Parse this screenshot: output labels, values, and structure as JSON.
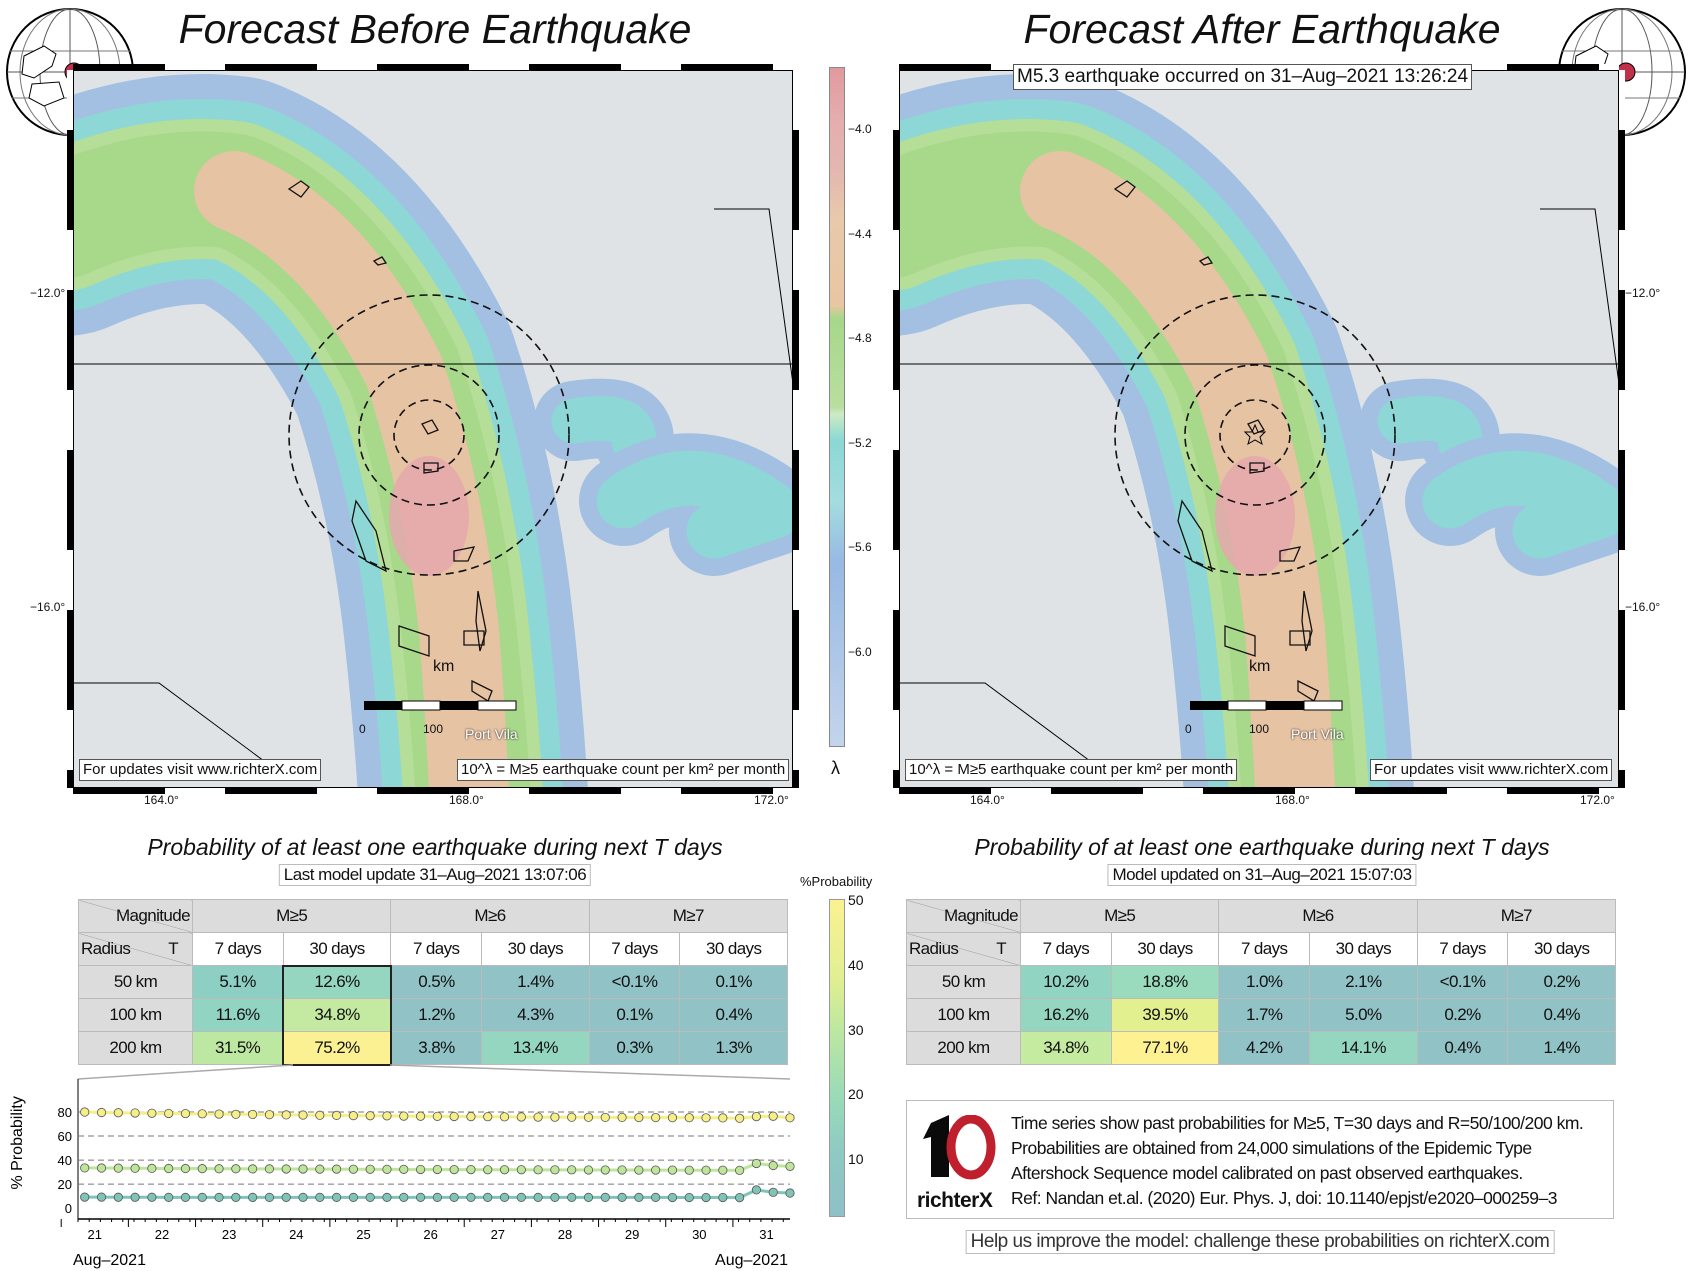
{
  "left_panel": {
    "title": "Forecast Before Earthquake",
    "updates_note": "For updates visit www.richterX.com",
    "legend_note": "10^λ = M≥5 earthquake count per km² per month",
    "table_title": "Probability of at least one earthquake during next T days",
    "table_subtitle": "Last model update 31–Aug–2021 13:07:06",
    "rows": [
      {
        "radius": "50 km",
        "values": [
          "5.1%",
          "12.6%",
          "0.5%",
          "1.4%",
          "<0.1%",
          "0.1%"
        ],
        "colors": [
          "#8ecfc3",
          "#94d6c0",
          "#91c2c6",
          "#91c2c6",
          "#91c2c6",
          "#91c2c6"
        ]
      },
      {
        "radius": "100 km",
        "values": [
          "11.6%",
          "34.8%",
          "1.2%",
          "4.3%",
          "0.1%",
          "0.4%"
        ],
        "colors": [
          "#92d4c2",
          "#c3eaa0",
          "#91c2c6",
          "#91c2c6",
          "#91c2c6",
          "#91c2c6"
        ]
      },
      {
        "radius": "200 km",
        "values": [
          "31.5%",
          "75.2%",
          "3.8%",
          "13.4%",
          "0.3%",
          "1.3%"
        ],
        "colors": [
          "#bde8a2",
          "#fcf192",
          "#91c2c6",
          "#94d6c0",
          "#91c2c6",
          "#91c2c6"
        ]
      }
    ]
  },
  "right_panel": {
    "title": "Forecast After Earthquake",
    "event_note": "M5.3 earthquake occurred on 31–Aug–2021 13:26:24",
    "updates_note": "For updates visit www.richterX.com",
    "legend_note": "10^λ = M≥5 earthquake count per km² per month",
    "table_title": "Probability of at least one earthquake during next T days",
    "table_subtitle": "Model updated on 31–Aug–2021 15:07:03",
    "rows": [
      {
        "radius": "50 km",
        "values": [
          "10.2%",
          "18.8%",
          "1.0%",
          "2.1%",
          "<0.1%",
          "0.2%"
        ],
        "colors": [
          "#92d4c2",
          "#9adbbd",
          "#91c2c6",
          "#91c2c6",
          "#91c2c6",
          "#91c2c6"
        ]
      },
      {
        "radius": "100 km",
        "values": [
          "16.2%",
          "39.5%",
          "1.7%",
          "5.0%",
          "0.2%",
          "0.4%"
        ],
        "colors": [
          "#94d6c0",
          "#e2f08f",
          "#91c2c6",
          "#91c2c6",
          "#91c2c6",
          "#91c2c6"
        ]
      },
      {
        "radius": "200 km",
        "values": [
          "34.8%",
          "77.1%",
          "4.2%",
          "14.1%",
          "0.4%",
          "1.4%"
        ],
        "colors": [
          "#c5eba0",
          "#fdf191",
          "#91c2c6",
          "#94d6c0",
          "#91c2c6",
          "#91c2c6"
        ]
      }
    ],
    "info_lines": [
      "Time series show past probabilities for M≥5, T=30 days and R=50/100/200 km.",
      "Probabilities are obtained from 24,000 simulations of the Epidemic Type",
      "Aftershock Sequence model calibrated on past observed earthquakes.",
      "Ref: Nandan et.al. (2020) Eur. Phys. J, doi: 10.1140/epjst/e2020–000259–3"
    ],
    "logo_text": "richterX",
    "help_note": "Help us improve the model: challenge these probabilities on richterX.com"
  },
  "table_headers": {
    "magnitude": "Magnitude",
    "radius": "Radius",
    "t": "T",
    "mags": [
      "M≥5",
      "M≥6",
      "M≥7"
    ],
    "periods": [
      "7 days",
      "30 days",
      "7 days",
      "30 days",
      "7 days",
      "30 days"
    ]
  },
  "map_axes": {
    "lat_ticks": [
      "−12.0°",
      "−16.0°"
    ],
    "lon_ticks": [
      "164.0°",
      "168.0°",
      "172.0°"
    ],
    "scale_unit": "km",
    "scale_ticks": [
      "0",
      "100"
    ],
    "place": "Port Vila"
  },
  "rate_colorbar": {
    "symbol": "λ",
    "ticks": [
      "−4.0",
      "−4.4",
      "−4.8",
      "−5.2",
      "−5.6",
      "−6.0"
    ]
  },
  "prob_colorbar": {
    "label": "%Probability",
    "ticks": [
      "50",
      "40",
      "30",
      "20",
      "10"
    ]
  },
  "colors": {
    "ring": "#000",
    "epicenter_dot": "#c0304a",
    "logo_red": "#c0202e"
  },
  "chart_data": {
    "type": "line",
    "ylabel": "% Probability",
    "ylim": [
      -9,
      90
    ],
    "xlim": [
      20.75,
      31.35
    ],
    "yticks": [
      0,
      20,
      40,
      60,
      80
    ],
    "xtick_labels": [
      "21",
      "22",
      "23",
      "24",
      "25",
      "26",
      "27",
      "28",
      "29",
      "30",
      "31"
    ],
    "xtick_values": [
      21,
      22,
      23,
      24,
      25,
      26,
      27,
      28,
      29,
      30,
      31
    ],
    "x_month_left": "Aug–2021",
    "x_month_right": "Aug–2021",
    "grid": "horizontal dashed",
    "x": [
      20.85,
      21.1,
      21.35,
      21.6,
      21.85,
      22.1,
      22.35,
      22.6,
      22.85,
      23.1,
      23.35,
      23.6,
      23.85,
      24.1,
      24.35,
      24.6,
      24.85,
      25.1,
      25.35,
      25.6,
      25.85,
      26.1,
      26.35,
      26.6,
      26.85,
      27.1,
      27.35,
      27.6,
      27.85,
      28.1,
      28.35,
      28.6,
      28.85,
      29.1,
      29.35,
      29.6,
      29.85,
      30.1,
      30.35,
      30.6,
      30.85,
      31.1,
      31.35
    ],
    "series": [
      {
        "radius": "200 km",
        "color": "#f6ee88",
        "values": [
          80,
          79.6,
          79.4,
          79.2,
          79,
          78.8,
          78.7,
          78.5,
          78.3,
          78.1,
          78,
          77.8,
          77.6,
          77.5,
          77.3,
          77.2,
          77,
          76.9,
          76.8,
          76.6,
          76.5,
          76.4,
          76.3,
          76.2,
          76.1,
          76,
          75.9,
          75.8,
          75.7,
          75.6,
          75.6,
          75.5,
          75.5,
          75.4,
          75.4,
          75.3,
          75.3,
          75.2,
          75.1,
          74.8,
          76.2,
          76.5,
          75.2
        ]
      },
      {
        "radius": "100 km",
        "color": "#bfe59a",
        "values": [
          33.5,
          33.4,
          33.3,
          33.2,
          33.1,
          33,
          33,
          32.9,
          32.8,
          32.8,
          32.7,
          32.7,
          32.6,
          32.6,
          32.5,
          32.5,
          32.4,
          32.4,
          32.3,
          32.3,
          32.2,
          32.2,
          32.1,
          32.1,
          32,
          32,
          32,
          31.9,
          31.9,
          31.9,
          31.8,
          31.8,
          31.8,
          31.7,
          31.7,
          31.7,
          31.6,
          31.6,
          31.6,
          31.5,
          37.2,
          35.5,
          34.8
        ]
      },
      {
        "radius": "50 km",
        "color": "#7fc4b6",
        "values": [
          9.2,
          9.2,
          9.1,
          9.1,
          9.1,
          9,
          9,
          9,
          9,
          9,
          9,
          9,
          9,
          9,
          9,
          9,
          9,
          9,
          9,
          9,
          9,
          9,
          9,
          9,
          9,
          9,
          9,
          9,
          9,
          9,
          9,
          9,
          9,
          9,
          9,
          8.9,
          8.9,
          8.9,
          8.9,
          8.8,
          15.2,
          13.2,
          12.6
        ]
      }
    ]
  }
}
